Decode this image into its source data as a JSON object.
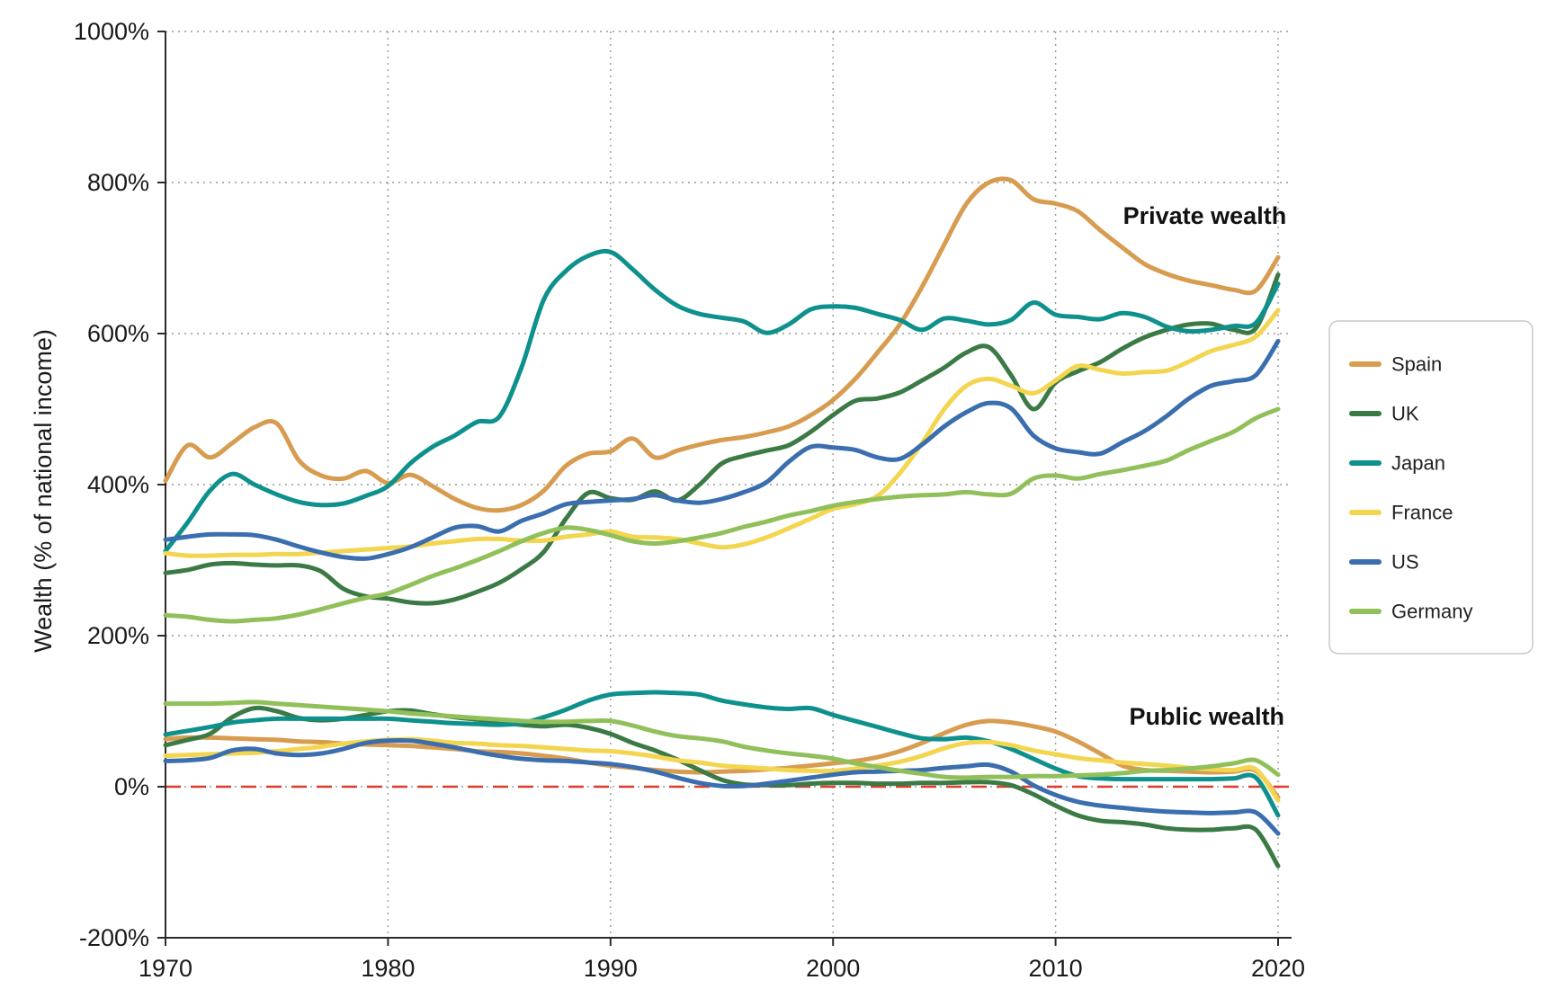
{
  "chart_data": {
    "type": "line",
    "title": "",
    "xlabel": "",
    "ylabel": "Wealth (% of national income)",
    "xlim": [
      1970,
      2021.2
    ],
    "ylim": [
      -200,
      1000
    ],
    "grid": "dotted",
    "legend_position": "right-outside",
    "y_ticks": [
      {
        "value": 1000,
        "label": "1000%"
      },
      {
        "value": 800,
        "label": "800%"
      },
      {
        "value": 600,
        "label": "600%"
      },
      {
        "value": 400,
        "label": "400%"
      },
      {
        "value": 200,
        "label": "200%"
      },
      {
        "value": 0,
        "label": "0%"
      },
      {
        "value": -200,
        "label": "-200%"
      }
    ],
    "x_ticks": [
      {
        "value": 1970,
        "label": "1970"
      },
      {
        "value": 1980,
        "label": "1980"
      },
      {
        "value": 1990,
        "label": "1990"
      },
      {
        "value": 2000,
        "label": "2000"
      },
      {
        "value": 2010,
        "label": "2010"
      },
      {
        "value": 2020,
        "label": "2020"
      }
    ],
    "zero_line": {
      "value": 0,
      "color": "#DE3B2B",
      "style": "dashed"
    },
    "annotations": [
      {
        "text": "Private wealth",
        "x": 2016.7,
        "y": 756
      },
      {
        "text": "Public wealth",
        "x": 2016.8,
        "y": 93
      }
    ],
    "x": [
      1970,
      1971,
      1972,
      1973,
      1974,
      1975,
      1976,
      1977,
      1978,
      1979,
      1980,
      1981,
      1982,
      1983,
      1984,
      1985,
      1986,
      1987,
      1988,
      1989,
      1990,
      1991,
      1992,
      1993,
      1994,
      1995,
      1996,
      1997,
      1998,
      1999,
      2000,
      2001,
      2002,
      2003,
      2004,
      2005,
      2006,
      2007,
      2008,
      2009,
      2010,
      2011,
      2012,
      2013,
      2014,
      2015,
      2016,
      2017,
      2018,
      2019,
      2020
    ],
    "series": [
      {
        "name": "Spain",
        "group": "private",
        "color": "#D79C4F",
        "values": [
          405,
          452,
          436,
          455,
          476,
          481,
          432,
          412,
          408,
          418,
          402,
          413,
          398,
          381,
          369,
          366,
          373,
          392,
          425,
          441,
          444,
          461,
          436,
          445,
          453,
          459,
          463,
          469,
          477,
          492,
          512,
          540,
          575,
          612,
          662,
          718,
          772,
          800,
          803,
          778,
          772,
          762,
          737,
          714,
          692,
          679,
          670,
          664,
          658,
          657,
          701
        ]
      },
      {
        "name": "Spain",
        "group": "public",
        "color": "#D79C4F",
        "values": [
          63,
          65,
          65,
          64,
          63,
          62,
          60,
          59,
          57,
          56,
          55,
          54,
          52,
          50,
          47,
          46,
          44,
          41,
          37,
          32,
          28,
          25,
          22,
          20,
          19,
          20,
          21,
          23,
          25,
          28,
          31,
          34,
          39,
          47,
          58,
          71,
          82,
          87,
          85,
          80,
          73,
          60,
          44,
          28,
          22,
          21,
          20,
          19,
          20,
          21,
          -14
        ]
      },
      {
        "name": "UK",
        "group": "private",
        "color": "#3B7A45",
        "values": [
          283,
          287,
          294,
          296,
          294,
          293,
          293,
          285,
          262,
          252,
          249,
          244,
          243,
          248,
          258,
          270,
          288,
          311,
          355,
          389,
          382,
          380,
          391,
          379,
          400,
          428,
          438,
          445,
          452,
          470,
          492,
          511,
          514,
          522,
          538,
          555,
          575,
          582,
          545,
          500,
          535,
          550,
          562,
          580,
          595,
          605,
          612,
          613,
          605,
          607,
          678
        ]
      },
      {
        "name": "UK",
        "group": "public",
        "color": "#3B7A45",
        "values": [
          55,
          62,
          70,
          92,
          104,
          100,
          91,
          88,
          90,
          95,
          100,
          101,
          96,
          92,
          89,
          85,
          82,
          80,
          82,
          78,
          70,
          58,
          48,
          36,
          22,
          9,
          3,
          2,
          2,
          4,
          5,
          5,
          4,
          4,
          5,
          5,
          6,
          6,
          2,
          -10,
          -25,
          -38,
          -45,
          -47,
          -50,
          -55,
          -57,
          -57,
          -55,
          -57,
          -105
        ]
      },
      {
        "name": "Japan",
        "group": "private",
        "color": "#0E918C",
        "values": [
          312,
          350,
          392,
          414,
          400,
          387,
          377,
          373,
          375,
          385,
          398,
          428,
          450,
          465,
          483,
          490,
          555,
          645,
          683,
          703,
          708,
          685,
          658,
          637,
          626,
          621,
          616,
          601,
          612,
          632,
          636,
          634,
          626,
          618,
          605,
          620,
          617,
          612,
          618,
          641,
          625,
          622,
          619,
          627,
          622,
          609,
          603,
          605,
          610,
          614,
          666
        ]
      },
      {
        "name": "Japan",
        "group": "public",
        "color": "#0E918C",
        "values": [
          69,
          74,
          79,
          85,
          88,
          90,
          90,
          90,
          90,
          90,
          90,
          88,
          86,
          84,
          83,
          82,
          84,
          92,
          102,
          114,
          122,
          124,
          125,
          124,
          122,
          114,
          109,
          105,
          103,
          104,
          95,
          87,
          79,
          71,
          64,
          63,
          65,
          60,
          50,
          37,
          24,
          14,
          11,
          10,
          10,
          10,
          10,
          10,
          11,
          12,
          -38
        ]
      },
      {
        "name": "France",
        "group": "private",
        "color": "#F3D54F",
        "values": [
          309,
          306,
          306,
          307,
          307,
          308,
          308,
          310,
          312,
          314,
          316,
          318,
          322,
          325,
          328,
          328,
          326,
          326,
          331,
          334,
          338,
          331,
          330,
          328,
          322,
          317,
          321,
          330,
          342,
          355,
          368,
          374,
          385,
          415,
          455,
          500,
          531,
          540,
          531,
          521,
          538,
          557,
          552,
          547,
          549,
          551,
          563,
          577,
          585,
          596,
          631
        ]
      },
      {
        "name": "France",
        "group": "public",
        "color": "#F3D54F",
        "values": [
          41,
          42,
          43,
          44,
          45,
          47,
          50,
          53,
          57,
          60,
          62,
          63,
          61,
          58,
          57,
          55,
          54,
          52,
          50,
          48,
          47,
          44,
          40,
          35,
          32,
          28,
          26,
          24,
          22,
          21,
          21,
          24,
          28,
          33,
          41,
          51,
          58,
          59,
          55,
          48,
          43,
          38,
          35,
          32,
          30,
          28,
          25,
          23,
          22,
          23,
          -18
        ]
      },
      {
        "name": "US",
        "group": "private",
        "color": "#3B6EAE",
        "values": [
          327,
          331,
          334,
          334,
          333,
          327,
          318,
          310,
          304,
          302,
          308,
          317,
          330,
          343,
          345,
          338,
          352,
          362,
          374,
          377,
          379,
          381,
          386,
          379,
          376,
          381,
          390,
          403,
          430,
          450,
          449,
          446,
          436,
          434,
          453,
          477,
          496,
          508,
          501,
          465,
          448,
          443,
          441,
          456,
          471,
          491,
          514,
          531,
          537,
          545,
          590
        ]
      },
      {
        "name": "US",
        "group": "public",
        "color": "#3B6EAE",
        "values": [
          34,
          35,
          38,
          48,
          50,
          44,
          42,
          44,
          50,
          58,
          61,
          61,
          57,
          52,
          46,
          41,
          37,
          35,
          34,
          32,
          30,
          26,
          20,
          12,
          5,
          1,
          1,
          4,
          8,
          12,
          16,
          19,
          20,
          21,
          22,
          25,
          27,
          29,
          20,
          2,
          -11,
          -20,
          -25,
          -28,
          -31,
          -33,
          -34,
          -35,
          -34,
          -34,
          -62
        ]
      },
      {
        "name": "Germany",
        "group": "private",
        "color": "#91C05A",
        "values": [
          227,
          225,
          221,
          219,
          221,
          223,
          228,
          235,
          243,
          250,
          256,
          267,
          279,
          289,
          300,
          312,
          325,
          336,
          343,
          340,
          333,
          325,
          322,
          325,
          330,
          336,
          344,
          351,
          359,
          365,
          372,
          377,
          381,
          384,
          386,
          387,
          390,
          387,
          388,
          408,
          412,
          408,
          414,
          419,
          425,
          432,
          446,
          458,
          470,
          488,
          500
        ]
      },
      {
        "name": "Germany",
        "group": "public",
        "color": "#91C05A",
        "values": [
          110,
          110,
          110,
          111,
          112,
          110,
          108,
          106,
          104,
          102,
          100,
          97,
          95,
          93,
          91,
          89,
          87,
          86,
          86,
          87,
          87,
          81,
          73,
          67,
          64,
          60,
          53,
          48,
          44,
          41,
          37,
          31,
          26,
          21,
          17,
          13,
          12,
          13,
          13,
          14,
          14,
          15,
          16,
          18,
          21,
          22,
          24,
          27,
          31,
          35,
          16
        ]
      }
    ]
  },
  "legend": {
    "entries": [
      {
        "label": "Spain",
        "color": "#D79C4F"
      },
      {
        "label": "UK",
        "color": "#3B7A45"
      },
      {
        "label": "Japan",
        "color": "#0E918C"
      },
      {
        "label": "France",
        "color": "#F3D54F"
      },
      {
        "label": "US",
        "color": "#3B6EAE"
      },
      {
        "label": "Germany",
        "color": "#91C05A"
      }
    ]
  },
  "style": {
    "grid_color": "#999999",
    "spine_color": "#2b2b2b",
    "zero_line_color": "#DE3B2B",
    "line_width": 5
  }
}
